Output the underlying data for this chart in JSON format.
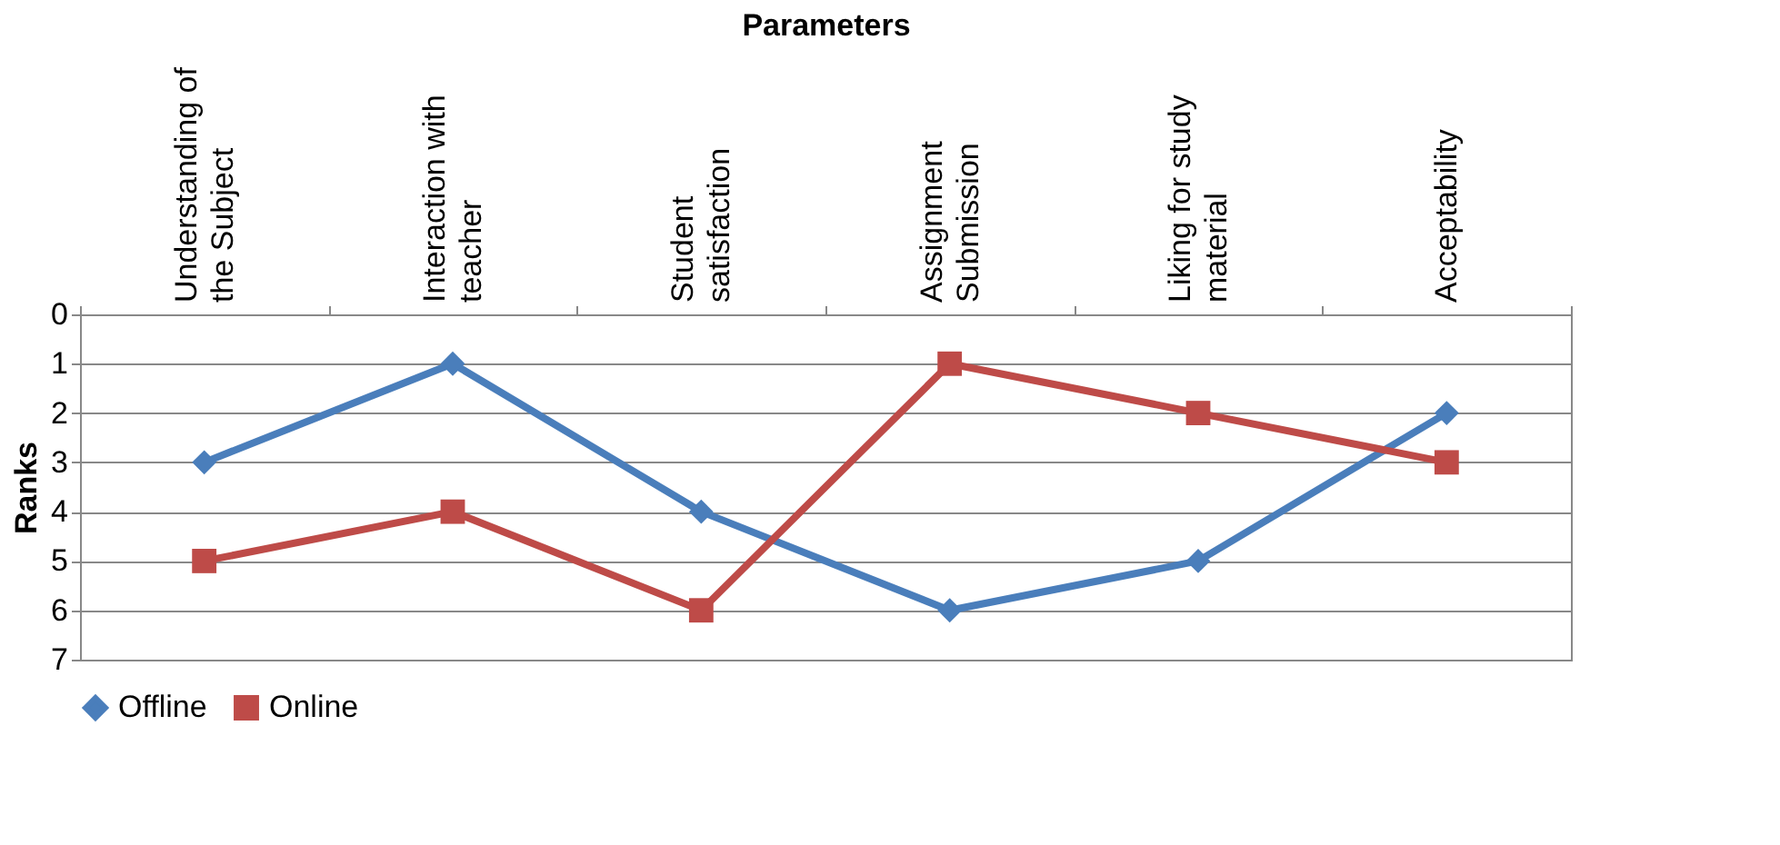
{
  "chart_data": {
    "type": "line",
    "xlabel": "Parameters",
    "ylabel": "Ranks",
    "categories": [
      "Understanding of the Subject",
      "Interaction with teacher",
      "Student satisfaction",
      "Assignment Submission",
      "Liking for study material",
      "Acceptability"
    ],
    "series": [
      {
        "name": "Offline",
        "color": "#4a7ebb",
        "marker": "diamond",
        "values": [
          3,
          1,
          4,
          6,
          5,
          2
        ]
      },
      {
        "name": "Online",
        "color": "#be4b48",
        "marker": "square",
        "values": [
          5,
          4,
          6,
          1,
          2,
          3
        ]
      }
    ],
    "ylim": [
      7,
      0
    ],
    "yticks": [
      0,
      1,
      2,
      3,
      4,
      5,
      6,
      7
    ],
    "grid": "y",
    "legend": "bottom",
    "line_style": "solid"
  }
}
